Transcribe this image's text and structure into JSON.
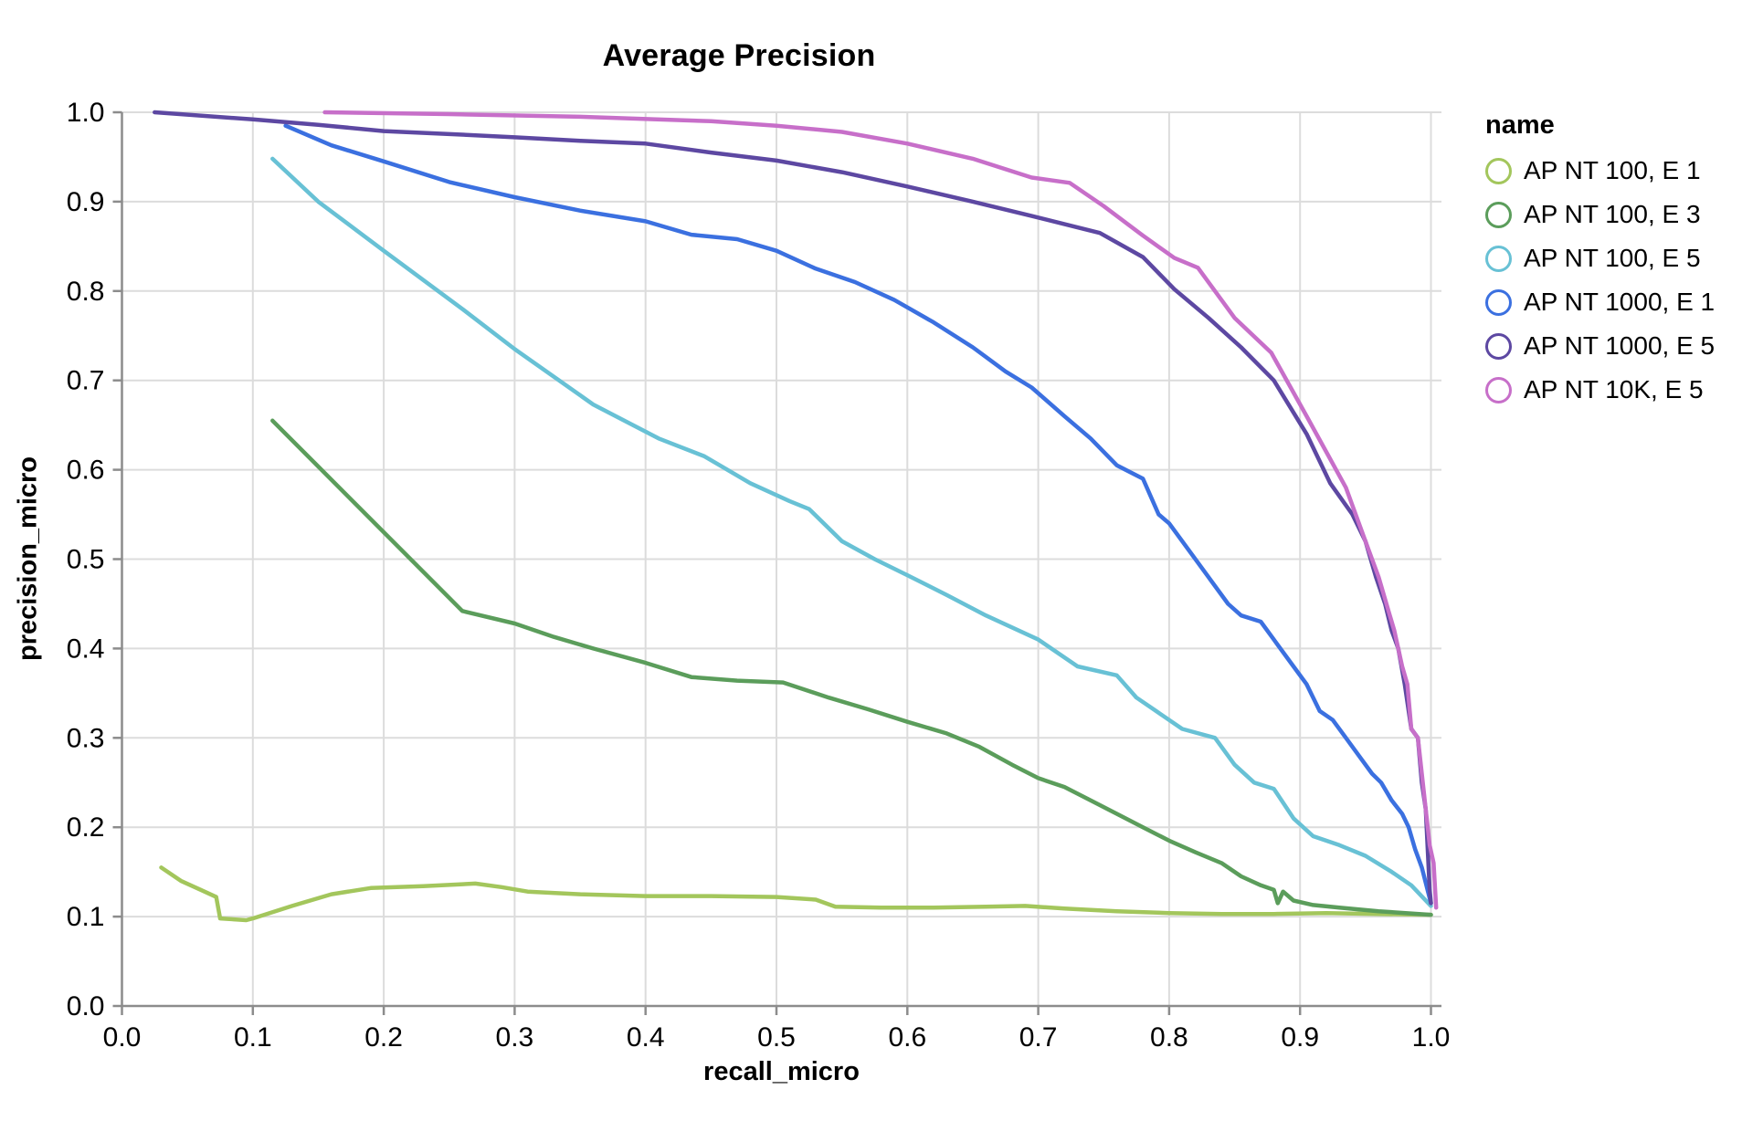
{
  "chart": {
    "title": "Average Precision",
    "legend_title": "name"
  },
  "chart_data": {
    "type": "line",
    "title": "Average Precision",
    "xlabel": "recall_micro",
    "ylabel": "precision_micro",
    "xlim": [
      0.0,
      1.0
    ],
    "ylim": [
      0.0,
      1.0
    ],
    "x_ticks": [
      "0.0",
      "0.1",
      "0.2",
      "0.3",
      "0.4",
      "0.5",
      "0.6",
      "0.7",
      "0.8",
      "0.9",
      "1.0"
    ],
    "y_ticks": [
      "0.0",
      "0.1",
      "0.2",
      "0.3",
      "0.4",
      "0.5",
      "0.6",
      "0.7",
      "0.8",
      "0.9",
      "1.0"
    ],
    "grid": true,
    "legend_position": "right",
    "legend_title": "name",
    "series": [
      {
        "name": "AP NT 100, E 1",
        "color": "#a3c65c",
        "points": [
          [
            0.03,
            0.155
          ],
          [
            0.045,
            0.14
          ],
          [
            0.06,
            0.13
          ],
          [
            0.072,
            0.122
          ],
          [
            0.075,
            0.098
          ],
          [
            0.095,
            0.096
          ],
          [
            0.1,
            0.098
          ],
          [
            0.13,
            0.112
          ],
          [
            0.16,
            0.125
          ],
          [
            0.19,
            0.132
          ],
          [
            0.23,
            0.134
          ],
          [
            0.27,
            0.137
          ],
          [
            0.29,
            0.133
          ],
          [
            0.31,
            0.128
          ],
          [
            0.35,
            0.125
          ],
          [
            0.4,
            0.123
          ],
          [
            0.45,
            0.123
          ],
          [
            0.5,
            0.122
          ],
          [
            0.53,
            0.119
          ],
          [
            0.545,
            0.111
          ],
          [
            0.58,
            0.11
          ],
          [
            0.62,
            0.11
          ],
          [
            0.66,
            0.111
          ],
          [
            0.69,
            0.112
          ],
          [
            0.72,
            0.109
          ],
          [
            0.76,
            0.106
          ],
          [
            0.8,
            0.104
          ],
          [
            0.84,
            0.103
          ],
          [
            0.88,
            0.103
          ],
          [
            0.92,
            0.104
          ],
          [
            0.96,
            0.103
          ],
          [
            1.0,
            0.102
          ]
        ]
      },
      {
        "name": "AP NT 100, E 3",
        "color": "#5b9d5b",
        "points": [
          [
            0.115,
            0.655
          ],
          [
            0.26,
            0.442
          ],
          [
            0.3,
            0.428
          ],
          [
            0.33,
            0.413
          ],
          [
            0.36,
            0.4
          ],
          [
            0.4,
            0.384
          ],
          [
            0.435,
            0.368
          ],
          [
            0.47,
            0.364
          ],
          [
            0.505,
            0.362
          ],
          [
            0.54,
            0.345
          ],
          [
            0.57,
            0.332
          ],
          [
            0.6,
            0.318
          ],
          [
            0.63,
            0.305
          ],
          [
            0.655,
            0.29
          ],
          [
            0.68,
            0.27
          ],
          [
            0.7,
            0.255
          ],
          [
            0.72,
            0.245
          ],
          [
            0.74,
            0.23
          ],
          [
            0.76,
            0.215
          ],
          [
            0.78,
            0.2
          ],
          [
            0.8,
            0.185
          ],
          [
            0.82,
            0.172
          ],
          [
            0.84,
            0.16
          ],
          [
            0.855,
            0.145
          ],
          [
            0.87,
            0.135
          ],
          [
            0.88,
            0.13
          ],
          [
            0.883,
            0.115
          ],
          [
            0.887,
            0.128
          ],
          [
            0.895,
            0.118
          ],
          [
            0.91,
            0.113
          ],
          [
            0.93,
            0.11
          ],
          [
            0.96,
            0.106
          ],
          [
            1.0,
            0.102
          ]
        ]
      },
      {
        "name": "AP NT 100, E 5",
        "color": "#68c1d5",
        "points": [
          [
            0.115,
            0.948
          ],
          [
            0.15,
            0.9
          ],
          [
            0.2,
            0.845
          ],
          [
            0.26,
            0.78
          ],
          [
            0.3,
            0.735
          ],
          [
            0.36,
            0.673
          ],
          [
            0.41,
            0.635
          ],
          [
            0.445,
            0.615
          ],
          [
            0.48,
            0.585
          ],
          [
            0.51,
            0.565
          ],
          [
            0.525,
            0.556
          ],
          [
            0.55,
            0.52
          ],
          [
            0.575,
            0.5
          ],
          [
            0.6,
            0.482
          ],
          [
            0.63,
            0.46
          ],
          [
            0.66,
            0.437
          ],
          [
            0.7,
            0.41
          ],
          [
            0.73,
            0.38
          ],
          [
            0.76,
            0.37
          ],
          [
            0.775,
            0.345
          ],
          [
            0.79,
            0.33
          ],
          [
            0.81,
            0.31
          ],
          [
            0.835,
            0.3
          ],
          [
            0.85,
            0.27
          ],
          [
            0.865,
            0.25
          ],
          [
            0.88,
            0.243
          ],
          [
            0.895,
            0.21
          ],
          [
            0.91,
            0.19
          ],
          [
            0.93,
            0.18
          ],
          [
            0.95,
            0.168
          ],
          [
            0.97,
            0.15
          ],
          [
            0.985,
            0.135
          ],
          [
            1.0,
            0.112
          ]
        ]
      },
      {
        "name": "AP NT 1000, E 1",
        "color": "#3b70e0",
        "points": [
          [
            0.125,
            0.985
          ],
          [
            0.16,
            0.963
          ],
          [
            0.2,
            0.945
          ],
          [
            0.25,
            0.922
          ],
          [
            0.3,
            0.905
          ],
          [
            0.35,
            0.89
          ],
          [
            0.4,
            0.878
          ],
          [
            0.435,
            0.863
          ],
          [
            0.47,
            0.858
          ],
          [
            0.5,
            0.845
          ],
          [
            0.53,
            0.825
          ],
          [
            0.56,
            0.81
          ],
          [
            0.59,
            0.79
          ],
          [
            0.62,
            0.765
          ],
          [
            0.65,
            0.737
          ],
          [
            0.675,
            0.71
          ],
          [
            0.695,
            0.692
          ],
          [
            0.72,
            0.66
          ],
          [
            0.74,
            0.635
          ],
          [
            0.76,
            0.605
          ],
          [
            0.78,
            0.59
          ],
          [
            0.792,
            0.55
          ],
          [
            0.8,
            0.54
          ],
          [
            0.815,
            0.51
          ],
          [
            0.83,
            0.48
          ],
          [
            0.845,
            0.45
          ],
          [
            0.855,
            0.437
          ],
          [
            0.87,
            0.43
          ],
          [
            0.88,
            0.41
          ],
          [
            0.895,
            0.38
          ],
          [
            0.905,
            0.36
          ],
          [
            0.915,
            0.33
          ],
          [
            0.925,
            0.32
          ],
          [
            0.935,
            0.3
          ],
          [
            0.945,
            0.28
          ],
          [
            0.955,
            0.26
          ],
          [
            0.962,
            0.25
          ],
          [
            0.97,
            0.23
          ],
          [
            0.978,
            0.215
          ],
          [
            0.983,
            0.2
          ],
          [
            0.988,
            0.175
          ],
          [
            0.993,
            0.155
          ],
          [
            1.0,
            0.115
          ]
        ]
      },
      {
        "name": "AP NT 1000, E 5",
        "color": "#5d48a2",
        "points": [
          [
            0.025,
            1.0
          ],
          [
            0.1,
            0.992
          ],
          [
            0.15,
            0.986
          ],
          [
            0.2,
            0.979
          ],
          [
            0.26,
            0.975
          ],
          [
            0.3,
            0.972
          ],
          [
            0.35,
            0.968
          ],
          [
            0.4,
            0.965
          ],
          [
            0.45,
            0.955
          ],
          [
            0.5,
            0.946
          ],
          [
            0.55,
            0.933
          ],
          [
            0.6,
            0.917
          ],
          [
            0.65,
            0.9
          ],
          [
            0.695,
            0.884
          ],
          [
            0.747,
            0.865
          ],
          [
            0.78,
            0.838
          ],
          [
            0.804,
            0.802
          ],
          [
            0.83,
            0.77
          ],
          [
            0.855,
            0.737
          ],
          [
            0.88,
            0.7
          ],
          [
            0.905,
            0.64
          ],
          [
            0.923,
            0.585
          ],
          [
            0.94,
            0.55
          ],
          [
            0.95,
            0.52
          ],
          [
            0.958,
            0.48
          ],
          [
            0.965,
            0.45
          ],
          [
            0.97,
            0.42
          ],
          [
            0.975,
            0.4
          ],
          [
            0.98,
            0.36
          ],
          [
            0.985,
            0.31
          ],
          [
            0.99,
            0.3
          ],
          [
            0.993,
            0.25
          ],
          [
            0.996,
            0.22
          ],
          [
            0.999,
            0.13
          ],
          [
            1.0,
            0.115
          ]
        ]
      },
      {
        "name": "AP NT 10K, E 5",
        "color": "#c76fc9",
        "points": [
          [
            0.155,
            1.0
          ],
          [
            0.25,
            0.998
          ],
          [
            0.35,
            0.995
          ],
          [
            0.45,
            0.99
          ],
          [
            0.5,
            0.985
          ],
          [
            0.55,
            0.978
          ],
          [
            0.6,
            0.965
          ],
          [
            0.65,
            0.948
          ],
          [
            0.695,
            0.927
          ],
          [
            0.724,
            0.921
          ],
          [
            0.75,
            0.895
          ],
          [
            0.78,
            0.862
          ],
          [
            0.804,
            0.837
          ],
          [
            0.822,
            0.826
          ],
          [
            0.85,
            0.77
          ],
          [
            0.878,
            0.731
          ],
          [
            0.905,
            0.66
          ],
          [
            0.92,
            0.62
          ],
          [
            0.935,
            0.58
          ],
          [
            0.95,
            0.52
          ],
          [
            0.96,
            0.48
          ],
          [
            0.968,
            0.44
          ],
          [
            0.972,
            0.42
          ],
          [
            0.978,
            0.38
          ],
          [
            0.982,
            0.36
          ],
          [
            0.985,
            0.31
          ],
          [
            0.99,
            0.3
          ],
          [
            0.993,
            0.26
          ],
          [
            0.996,
            0.22
          ],
          [
            0.999,
            0.18
          ],
          [
            1.002,
            0.16
          ],
          [
            1.004,
            0.11
          ]
        ]
      }
    ]
  }
}
